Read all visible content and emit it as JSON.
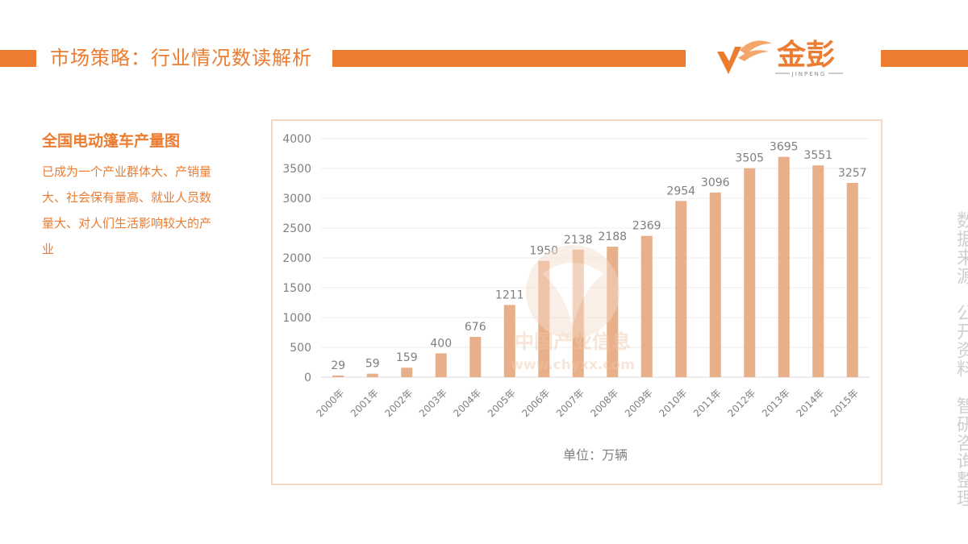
{
  "header": {
    "title": "市场策略：行业情况数读解析",
    "logo_text": "金彭",
    "logo_subtext": "JINPENG",
    "accent": "#ec7c30"
  },
  "intro": {
    "heading": "全国电动篷车产量图",
    "body": "已成为一个产业群体大、产销量大、社会保有量高、就业人员数量大、对人们生活影响较大的产业"
  },
  "watermark": {
    "text": "中国产业信息",
    "url": "www.chyxx.com"
  },
  "source_note": "数据来源：公开资料、智研咨询整理",
  "chart_data": {
    "type": "bar",
    "categories": [
      "2000年",
      "2001年",
      "2002年",
      "2003年",
      "2004年",
      "2005年",
      "2006年",
      "2007年",
      "2008年",
      "2009年",
      "2010年",
      "2011年",
      "2012年",
      "2013年",
      "2014年",
      "2015年"
    ],
    "values": [
      29,
      59,
      159,
      400,
      676,
      1211,
      1950,
      2138,
      2188,
      2369,
      2954,
      3096,
      3505,
      3695,
      3551,
      3257
    ],
    "ylim": [
      0,
      4000
    ],
    "yticks": [
      0,
      500,
      1000,
      1500,
      2000,
      2500,
      3000,
      3500,
      4000
    ],
    "xlabel": "单位：万辆",
    "ylabel": "",
    "grid": true,
    "bar_color": "#e8b08a",
    "label_color": "#7f7f7f"
  }
}
